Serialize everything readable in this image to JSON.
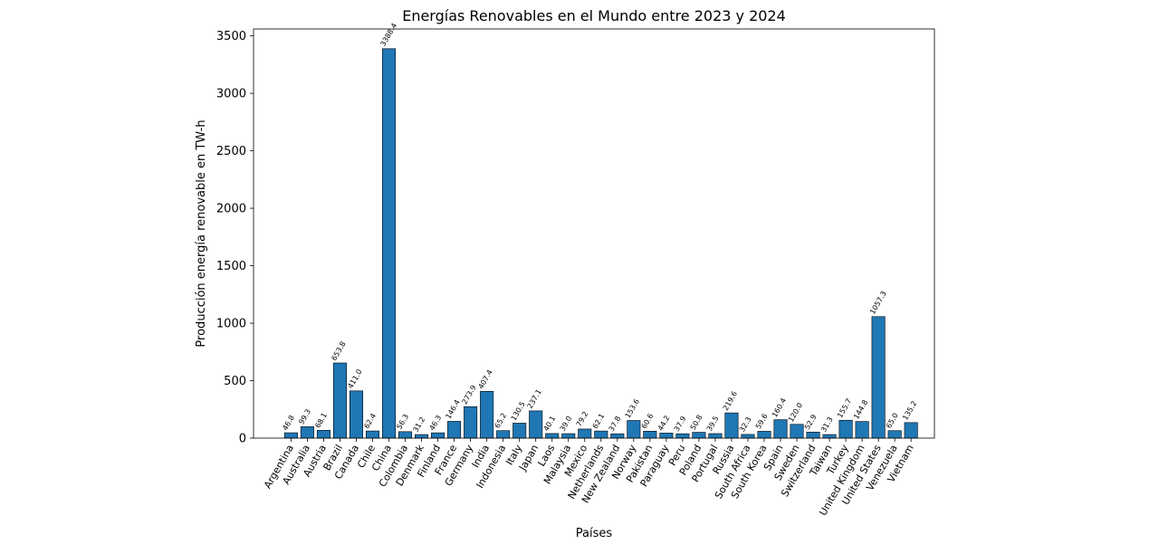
{
  "chart_data": {
    "type": "bar",
    "title": "Energías Renovables en el Mundo entre 2023 y 2024",
    "xlabel": "Países",
    "ylabel": "Producción energía renovable en TW-h",
    "ylim": [
      0,
      3560
    ],
    "yticks": [
      0,
      500,
      1000,
      1500,
      2000,
      2500,
      3000,
      3500
    ],
    "grid": false,
    "bar_color": "#1f77b4",
    "categories": [
      "Argentina",
      "Australia",
      "Austria",
      "Brazil",
      "Canada",
      "Chile",
      "China",
      "Colombia",
      "Denmark",
      "Finland",
      "France",
      "Germany",
      "India",
      "Indonesia",
      "Italy",
      "Japan",
      "Laos",
      "Malaysia",
      "Mexico",
      "Netherlands",
      "New Zealand",
      "Norway",
      "Pakistan",
      "Paraguay",
      "Peru",
      "Poland",
      "Portugal",
      "Russia",
      "South Africa",
      "South Korea",
      "Spain",
      "Sweden",
      "Switzerland",
      "Taiwan",
      "Turkey",
      "United Kingdom",
      "United States",
      "Venezuela",
      "Vietnam"
    ],
    "values": [
      46.8,
      99.3,
      68.1,
      653.8,
      411.0,
      62.4,
      3388.4,
      56.3,
      31.2,
      46.3,
      146.4,
      273.9,
      407.4,
      65.2,
      130.5,
      237.1,
      40.1,
      39.0,
      79.2,
      62.1,
      37.8,
      153.6,
      60.6,
      44.2,
      37.9,
      50.8,
      39.5,
      219.6,
      32.3,
      59.6,
      160.4,
      120.0,
      52.9,
      31.3,
      155.7,
      144.8,
      1057.3,
      65.0,
      135.2
    ],
    "value_labels": [
      "46.8",
      "99.3",
      "68.1",
      "653.8",
      "411.0",
      "62.4",
      "3388.4",
      "56.3",
      "31.2",
      "46.3",
      "146.4",
      "273.9",
      "407.4",
      "65.2",
      "130.5",
      "237.1",
      "40.1",
      "39.0",
      "79.2",
      "62.1",
      "37.8",
      "153.6",
      "60.6",
      "44.2",
      "37.9",
      "50.8",
      "39.5",
      "219.6",
      "32.3",
      "59.6",
      "160.4",
      "120.0",
      "52.9",
      "31.3",
      "155.7",
      "144.8",
      "1057.3",
      "65.0",
      "135.2"
    ]
  }
}
